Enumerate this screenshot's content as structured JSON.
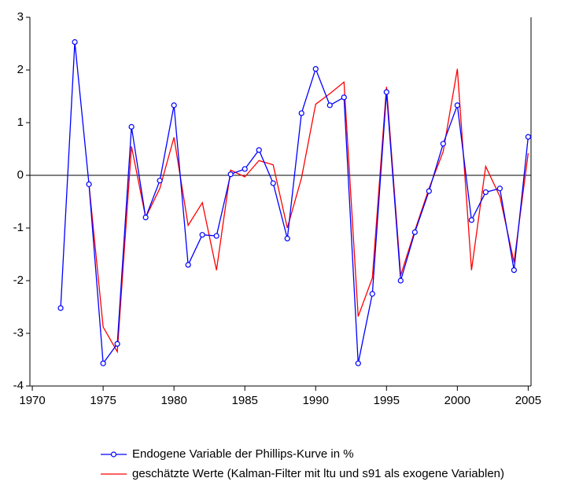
{
  "chart_data": {
    "type": "line",
    "x": [
      1972,
      1973,
      1974,
      1975,
      1976,
      1977,
      1978,
      1979,
      1980,
      1981,
      1982,
      1983,
      1984,
      1985,
      1986,
      1987,
      1988,
      1989,
      1990,
      1991,
      1992,
      1993,
      1994,
      1995,
      1996,
      1997,
      1998,
      1999,
      2000,
      2001,
      2002,
      2003,
      2004,
      2005
    ],
    "series": [
      {
        "name": "Endogene Variable der Phillips-Kurve in %",
        "color": "#0000ff",
        "marker": "circle",
        "values": [
          -2.52,
          2.53,
          -0.17,
          -3.57,
          -3.2,
          0.92,
          -0.8,
          -0.1,
          1.33,
          -1.7,
          -1.13,
          -1.15,
          0.02,
          0.12,
          0.48,
          -0.15,
          -1.2,
          1.18,
          2.02,
          1.33,
          1.48,
          -3.57,
          -2.25,
          1.58,
          -2.0,
          -1.08,
          -0.3,
          0.6,
          1.33,
          -0.85,
          -0.32,
          -0.25,
          -1.8,
          0.73
        ]
      },
      {
        "name": "geschätzte Werte (Kalman-Filter mit ltu und s91 als exogene Variablen)",
        "color": "#ff0000",
        "values": [
          null,
          null,
          -0.17,
          -2.88,
          -3.35,
          0.55,
          -0.8,
          -0.25,
          0.72,
          -0.95,
          -0.52,
          -1.8,
          0.1,
          -0.03,
          0.28,
          0.2,
          -1.0,
          -0.05,
          1.35,
          1.55,
          1.77,
          -2.68,
          -1.95,
          1.68,
          -1.9,
          -1.05,
          -0.25,
          0.45,
          2.02,
          -1.8,
          0.17,
          -0.4,
          -1.65,
          0.42
        ]
      }
    ],
    "xlim": [
      1969.83,
      2005.2
    ],
    "xticks": [
      1970,
      1975,
      1980,
      1985,
      1990,
      1995,
      2000,
      2005
    ],
    "ylim": [
      -4,
      3
    ],
    "yticks": [
      -4,
      -3,
      -2,
      -1,
      0,
      1,
      2,
      3
    ],
    "legend": "bottom"
  }
}
